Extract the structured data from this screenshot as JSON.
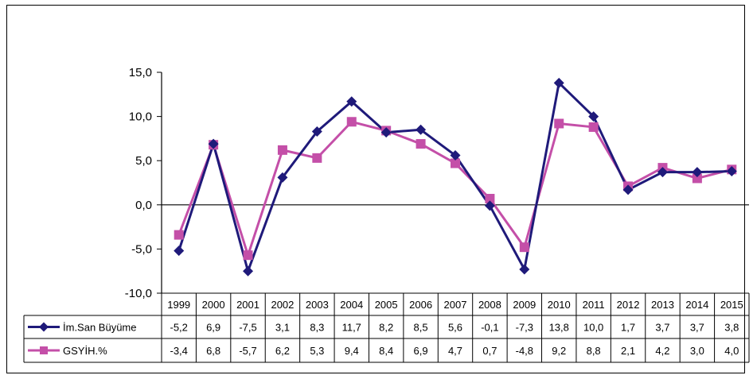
{
  "chart_data": {
    "type": "line",
    "categories": [
      "1999",
      "2000",
      "2001",
      "2002",
      "2003",
      "2004",
      "2005",
      "2006",
      "2007",
      "2008",
      "2009",
      "2010",
      "2011",
      "2012",
      "2013",
      "2014",
      "2015"
    ],
    "series": [
      {
        "name": "İm.San Büyüme",
        "color": "#1f1a7a",
        "marker": "diamond",
        "values": [
          -5.2,
          6.9,
          -7.5,
          3.1,
          8.3,
          11.7,
          8.2,
          8.5,
          5.6,
          -0.1,
          -7.3,
          13.8,
          10.0,
          1.7,
          3.7,
          3.7,
          3.8
        ],
        "labels": [
          "-5,2",
          "6,9",
          "-7,5",
          "3,1",
          "8,3",
          "11,7",
          "8,2",
          "8,5",
          "5,6",
          "-0,1",
          "-7,3",
          "13,8",
          "10,0",
          "1,7",
          "3,7",
          "3,7",
          "3,8"
        ]
      },
      {
        "name": "GSYİH.%",
        "color": "#c44fa8",
        "marker": "square",
        "values": [
          -3.4,
          6.8,
          -5.7,
          6.2,
          5.3,
          9.4,
          8.4,
          6.9,
          4.7,
          0.7,
          -4.8,
          9.2,
          8.8,
          2.1,
          4.2,
          3.0,
          4.0
        ],
        "labels": [
          "-3,4",
          "6,8",
          "-5,7",
          "6,2",
          "5,3",
          "9,4",
          "8,4",
          "6,9",
          "4,7",
          "0,7",
          "-4,8",
          "9,2",
          "8,8",
          "2,1",
          "4,2",
          "3,0",
          "4,0"
        ]
      }
    ],
    "ylim": [
      -10,
      15
    ],
    "yticks": [
      -10,
      -5,
      0,
      5,
      10,
      15
    ],
    "ytick_labels": [
      "-10,0",
      "-5,0",
      "0,0",
      "5,0",
      "10,0",
      "15,0"
    ],
    "grid": false,
    "legend": "data-table"
  }
}
